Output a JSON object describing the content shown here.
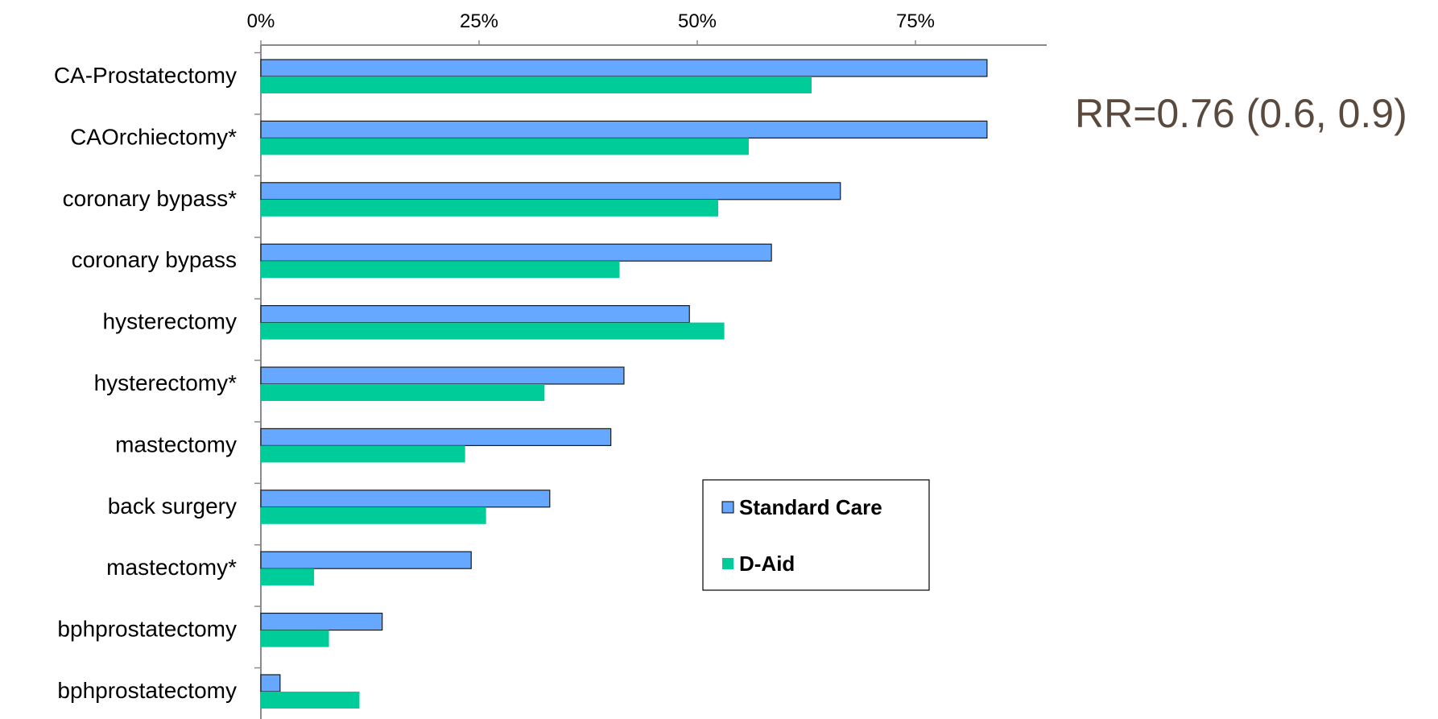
{
  "chart_data": {
    "type": "bar",
    "orientation": "horizontal",
    "categories": [
      "CA-Prostatectomy",
      "CAOrchiectomy*",
      "coronary bypass*",
      "coronary bypass",
      "hysterectomy",
      "hysterectomy*",
      "mastectomy",
      "back surgery",
      "mastectomy*",
      "bphprostatectomy",
      "bphprostatectomy"
    ],
    "series": [
      {
        "name": "Standard Care",
        "color": "#66a8ff",
        "values": [
          83.2,
          83.2,
          66.4,
          58.5,
          49.1,
          41.6,
          40.1,
          33.1,
          24.1,
          13.9,
          2.2
        ]
      },
      {
        "name": "D-Aid",
        "color": "#00cc99",
        "values": [
          63.1,
          55.9,
          52.4,
          41.1,
          53.1,
          32.5,
          23.4,
          25.8,
          6.1,
          7.8,
          11.3
        ]
      }
    ],
    "x_ticks": [
      "0%",
      "25%",
      "50%",
      "75%"
    ],
    "xlim": [
      0,
      90
    ],
    "grid": false,
    "legend_position": "lower-right",
    "annotation": "RR=0.76 (0.6, 0.9)"
  }
}
